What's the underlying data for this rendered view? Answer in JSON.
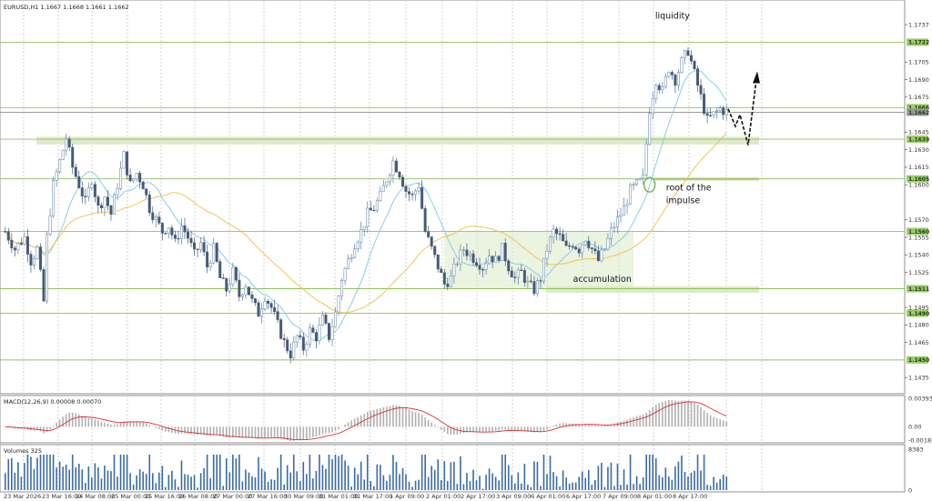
{
  "chart_data": {
    "type": "candlestick",
    "symbol_header": "EURUSD,H1  1.1667 1.1668 1.1661 1.1662",
    "price_axis": {
      "ylim": [
        1.1425,
        1.1755
      ],
      "ticks": [
        "1.1737",
        "1.1705",
        "1.1690",
        "1.1675",
        "1.1645",
        "1.1630",
        "1.1615",
        "1.1600",
        "1.1570",
        "1.1555",
        "1.1540",
        "1.1525",
        "1.1495",
        "1.1480",
        "1.1465",
        "1.1435"
      ]
    },
    "time_axis": {
      "labels": [
        "23 Mar 2026",
        "23 Mar 16:00",
        "24 Mar 08:00",
        "25 Mar 00:00",
        "25 Mar 16:00",
        "26 Mar 08:00",
        "27 Mar 00:00",
        "27 Mar 16:00",
        "30 Mar 09:00",
        "31 Mar 01:00",
        "31 Mar 17:00",
        "1 Apr 09:00",
        "2 Apr 01:00",
        "2 Apr 17:00",
        "3 Apr 09:00",
        "6 Apr 01:00",
        "6 Apr 17:00",
        "7 Apr 09:00",
        "8 Apr 01:00",
        "8 Apr 17:00"
      ]
    },
    "price_path": [
      [
        0,
        1.156
      ],
      [
        3,
        1.1545
      ],
      [
        6,
        1.1555
      ],
      [
        8,
        1.1535
      ],
      [
        10,
        1.1545
      ],
      [
        12,
        1.15
      ],
      [
        13,
        1.1555
      ],
      [
        15,
        1.16
      ],
      [
        17,
        1.162
      ],
      [
        19,
        1.164
      ],
      [
        21,
        1.1615
      ],
      [
        23,
        1.16
      ],
      [
        25,
        1.1585
      ],
      [
        27,
        1.1605
      ],
      [
        29,
        1.158
      ],
      [
        31,
        1.159
      ],
      [
        33,
        1.1575
      ],
      [
        35,
        1.16
      ],
      [
        37,
        1.1625
      ],
      [
        39,
        1.16
      ],
      [
        41,
        1.161
      ],
      [
        43,
        1.16
      ],
      [
        45,
        1.158
      ],
      [
        47,
        1.157
      ],
      [
        49,
        1.156
      ],
      [
        51,
        1.1565
      ],
      [
        53,
        1.155
      ],
      [
        55,
        1.1565
      ],
      [
        57,
        1.1555
      ],
      [
        59,
        1.154
      ],
      [
        61,
        1.155
      ],
      [
        63,
        1.153
      ],
      [
        65,
        1.1545
      ],
      [
        67,
        1.152
      ],
      [
        69,
        1.151
      ],
      [
        71,
        1.1525
      ],
      [
        73,
        1.1505
      ],
      [
        75,
        1.1515
      ],
      [
        77,
        1.15
      ],
      [
        79,
        1.149
      ],
      [
        81,
        1.1505
      ],
      [
        83,
        1.1495
      ],
      [
        85,
        1.148
      ],
      [
        87,
        1.1465
      ],
      [
        89,
        1.1455
      ],
      [
        91,
        1.147
      ],
      [
        93,
        1.146
      ],
      [
        95,
        1.1475
      ],
      [
        97,
        1.147
      ],
      [
        99,
        1.1485
      ],
      [
        101,
        1.147
      ],
      [
        103,
        1.149
      ],
      [
        105,
        1.152
      ],
      [
        107,
        1.1535
      ],
      [
        109,
        1.155
      ],
      [
        111,
        1.156
      ],
      [
        113,
        1.1575
      ],
      [
        115,
        1.158
      ],
      [
        117,
        1.159
      ],
      [
        119,
        1.1605
      ],
      [
        121,
        1.162
      ],
      [
        123,
        1.161
      ],
      [
        125,
        1.1595
      ],
      [
        127,
        1.159
      ],
      [
        129,
        1.16
      ],
      [
        131,
        1.156
      ],
      [
        133,
        1.1545
      ],
      [
        135,
        1.153
      ],
      [
        137,
        1.1515
      ],
      [
        139,
        1.152
      ],
      [
        141,
        1.1535
      ],
      [
        143,
        1.1545
      ],
      [
        145,
        1.154
      ],
      [
        147,
        1.1535
      ],
      [
        149,
        1.153
      ],
      [
        151,
        1.154
      ],
      [
        153,
        1.1535
      ],
      [
        155,
        1.1545
      ],
      [
        157,
        1.153
      ],
      [
        159,
        1.152
      ],
      [
        161,
        1.1525
      ],
      [
        163,
        1.1515
      ],
      [
        165,
        1.151
      ],
      [
        167,
        1.152
      ],
      [
        169,
        1.1545
      ],
      [
        171,
        1.156
      ],
      [
        173,
        1.1555
      ],
      [
        175,
        1.1545
      ],
      [
        177,
        1.155
      ],
      [
        179,
        1.1545
      ],
      [
        181,
        1.1555
      ],
      [
        183,
        1.1545
      ],
      [
        185,
        1.1535
      ],
      [
        187,
        1.1545
      ],
      [
        189,
        1.156
      ],
      [
        191,
        1.157
      ],
      [
        193,
        1.158
      ],
      [
        195,
        1.1595
      ],
      [
        197,
        1.16
      ],
      [
        199,
        1.1605
      ],
      [
        201,
        1.1665
      ],
      [
        203,
        1.169
      ],
      [
        205,
        1.168
      ],
      [
        207,
        1.17
      ],
      [
        209,
        1.169
      ],
      [
        211,
        1.1705
      ],
      [
        213,
        1.1715
      ],
      [
        215,
        1.1695
      ],
      [
        217,
        1.1675
      ],
      [
        219,
        1.1655
      ],
      [
        221,
        1.166
      ],
      [
        223,
        1.1665
      ],
      [
        225,
        1.1662
      ]
    ],
    "horizontal_levels": [
      {
        "price": 1.1722,
        "label": "1.1722",
        "color": "#8ec25a"
      },
      {
        "price": 1.1666,
        "label": "1.1666",
        "color": "#8ec25a"
      },
      {
        "price": 1.1662,
        "label": "1.1662",
        "color": "#9a9a9a"
      },
      {
        "price": 1.1639,
        "label": "1.1639",
        "color": "#8ec25a"
      },
      {
        "price": 1.1605,
        "label": "1.1605",
        "color": "#8ec25a"
      },
      {
        "price": 1.156,
        "label": "1.1560",
        "color": "#8ec25a"
      },
      {
        "price": 1.1511,
        "label": "1.1511",
        "color": "#8ec25a"
      },
      {
        "price": 1.149,
        "label": "1.1490",
        "color": "#8ec25a"
      },
      {
        "price": 1.145,
        "label": "1.1450",
        "color": "#8ec25a"
      }
    ],
    "moving_averages": [
      {
        "color": "#7ec8e8",
        "period": 12
      },
      {
        "color": "#f0c040",
        "period": 40
      }
    ],
    "annotations": [
      {
        "text": "liquidity",
        "price": 1.1742,
        "bar": 207
      },
      {
        "text": "root of the",
        "price": 1.1595,
        "bar": 205
      },
      {
        "text": "impulse",
        "price": 1.1584,
        "bar": 205
      },
      {
        "text": "accumulation",
        "price": 1.1517,
        "bar": 176
      }
    ],
    "macd": {
      "label": "MACD(12,26,9) 0.00008 0.00070",
      "ylim": [
        -0.00183,
        0.00393
      ],
      "ticks": [
        "0.00393",
        "0.00",
        "-0.00183"
      ]
    },
    "volumes": {
      "label": "Volumes 325",
      "ticks": [
        "8383",
        "0"
      ]
    },
    "colors": {
      "candle_up": "#5a7ea8",
      "candle_down": "#445a78",
      "grid": "#cfcfcf",
      "level": "#8ec25a",
      "zone": "#d8e8c4",
      "macd_signal": "#e03030",
      "macd_hist": "#b0b0b0",
      "volume": "#3a6aa8"
    }
  }
}
